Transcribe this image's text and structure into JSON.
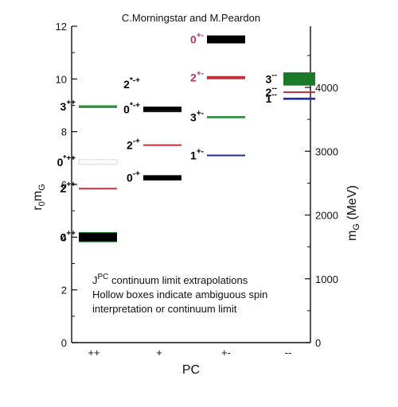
{
  "chart_data": {
    "type": "scatter",
    "title": "C.Morningstar and M.Peardon",
    "xlabel": "PC",
    "ylabel_left": "r₀m_G",
    "ylabel_right": "m_G (MeV)",
    "ylim": [
      0,
      12
    ],
    "right_ylim_mev": [
      0,
      4700
    ],
    "categories": [
      "++",
      "+",
      "+-",
      "--"
    ],
    "yticks_left": [
      "0",
      "2",
      "4",
      "6",
      "8",
      "10",
      "12"
    ],
    "yticks_right": [
      "0",
      "1000",
      "2000",
      "3000",
      "4000"
    ],
    "states": [
      {
        "name": "0++",
        "base": "0",
        "sup": "++",
        "pc": "++",
        "value": 4.0,
        "err": 0.16,
        "color": "#000000",
        "err_color": "#1a7a28",
        "label_color": "#000000"
      },
      {
        "name": "2++",
        "base": "2",
        "sup": "++",
        "pc": "++",
        "value": 5.85,
        "err": 0.02,
        "color": "#c0303a",
        "err_color": null,
        "label_color": "#000000"
      },
      {
        "name": "0*++",
        "base": "0",
        "sup": "*++",
        "pc": "++",
        "value": 6.85,
        "err": 0.0,
        "color": "#cccccc",
        "err_color": null,
        "label_color": "#000000",
        "hollow": true
      },
      {
        "name": "3++",
        "base": "3",
        "sup": "++",
        "pc": "++",
        "value": 8.95,
        "err": 0.05,
        "color": "#2c8c3c",
        "err_color": null,
        "label_color": "#000000"
      },
      {
        "name": "0-+",
        "base": "0",
        "sup": "-+",
        "pc": "+",
        "value": 6.25,
        "err": 0.1,
        "color": "#000000",
        "err_color": null,
        "label_color": "#000000"
      },
      {
        "name": "2-+",
        "base": "2",
        "sup": "-+",
        "pc": "+",
        "value": 7.5,
        "err": 0.02,
        "color": "#c0303a",
        "err_color": null,
        "label_color": "#000000"
      },
      {
        "name": "0*-+",
        "base": "0",
        "sup": "*-+",
        "pc": "+",
        "value": 8.85,
        "err": 0.1,
        "color": "#000000",
        "err_color": null,
        "label_color": "#000000"
      },
      {
        "name": "2*-+",
        "base": "2",
        "sup": "*-+",
        "pc": "+",
        "value": 8.8,
        "err": 0.0,
        "color": "#1a1a1a",
        "err_color": null,
        "label_color": "#000000",
        "label_offset": 1.0
      },
      {
        "name": "1+-",
        "base": "1",
        "sup": "+-",
        "pc": "+-",
        "value": 7.1,
        "err": 0.03,
        "color": "#1e2aa0",
        "err_color": null,
        "label_color": "#000000"
      },
      {
        "name": "3+-",
        "base": "3",
        "sup": "+-",
        "pc": "+-",
        "value": 8.55,
        "err": 0.04,
        "color": "#2c8c3c",
        "err_color": null,
        "label_color": "#000000"
      },
      {
        "name": "2+-",
        "base": "2",
        "sup": "+-",
        "pc": "+-",
        "value": 10.05,
        "err": 0.06,
        "color": "#c0303a",
        "err_color": null,
        "label_color": "#c0306a"
      },
      {
        "name": "0+-",
        "base": "0",
        "sup": "+-",
        "pc": "+-",
        "value": 11.5,
        "err": 0.15,
        "color": "#000000",
        "err_color": null,
        "label_color": "#c0306a"
      },
      {
        "name": "1--",
        "base": "1",
        "sup": "--",
        "pc": "--",
        "value": 9.25,
        "err": 0.04,
        "color": "#1e2aa0",
        "err_color": null,
        "label_color": "#000000"
      },
      {
        "name": "2--",
        "base": "2",
        "sup": "--",
        "pc": "--",
        "value": 9.5,
        "err": 0.03,
        "color": "#c0303a",
        "err_color": null,
        "label_color": "#000000"
      },
      {
        "name": "3--",
        "base": "3",
        "sup": "--",
        "pc": "--",
        "value": 10.0,
        "err": 0.25,
        "color": "#1a7a28",
        "err_color": null,
        "label_color": "#000000"
      }
    ],
    "notes": [
      "continuum limit extrapolations",
      "Hollow boxes indicate ambiguous spin",
      "interpretation or continuum limit"
    ],
    "notes_prefix_base": "J",
    "notes_prefix_sup": "PC"
  }
}
